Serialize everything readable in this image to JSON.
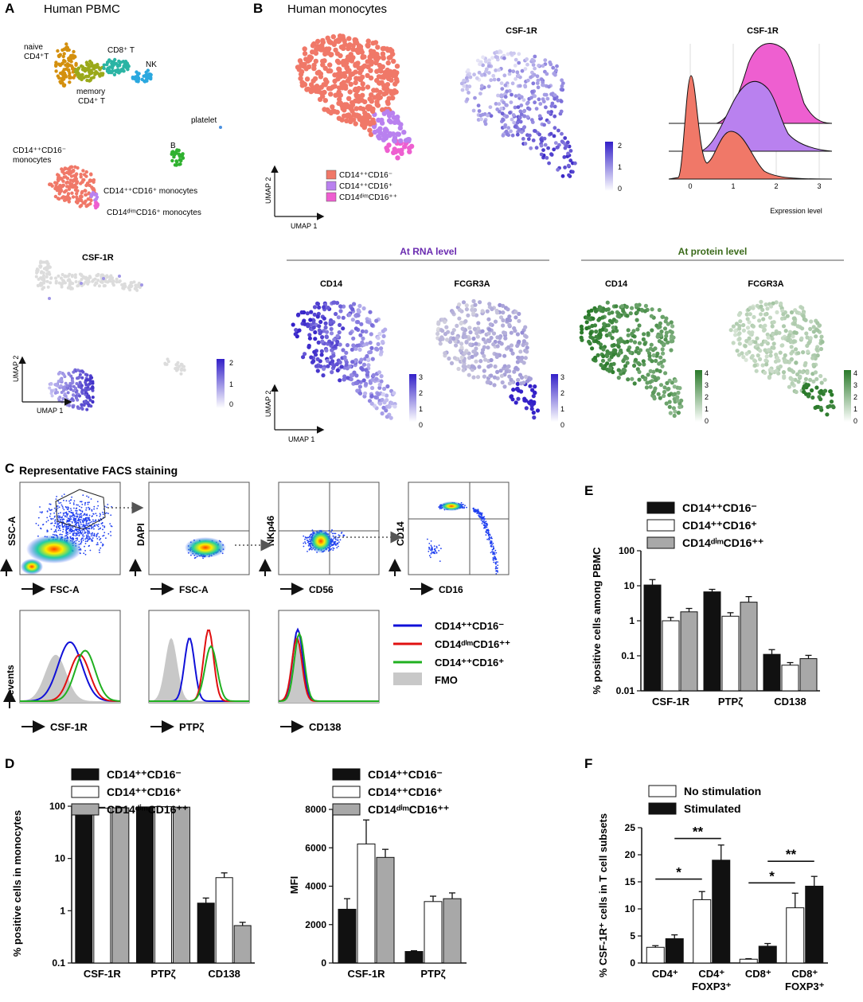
{
  "panels": {
    "A": {
      "letter": "A",
      "title": "Human PBMC",
      "csf_title": "CSF-1R",
      "cluster_labels": [
        "naive",
        "CD4⁺T",
        "CD8⁺ T",
        "NK",
        "memory",
        "CD4⁺ T",
        "platelet",
        "B",
        "CD14⁺⁺CD16⁻",
        "monocytes",
        "CD14⁺⁺CD16⁺ monocytes",
        "CD14ᵈⁱᵐCD16⁺ monocytes"
      ],
      "axis": {
        "x": "UMAP 1",
        "y": "UMAP 2"
      },
      "colorbar": [
        "2",
        "1",
        "0"
      ]
    },
    "B": {
      "letter": "B",
      "title": "Human monocytes",
      "csf_title": "CSF-1R",
      "ridge_title": "CSF-1R",
      "legend": [
        "CD14⁺⁺CD16⁻",
        "CD14⁺⁺CD16⁺",
        "CD14ᵈⁱᵐCD16⁺⁺"
      ],
      "axis": {
        "x": "UMAP 1",
        "y": "UMAP 2"
      },
      "colorbar": [
        "2",
        "1",
        "0"
      ],
      "ridge_ticks": [
        "0",
        "1",
        "2",
        "3"
      ],
      "ridge_xlabel": "Expression level",
      "rna_title": "At RNA level",
      "protein_title": "At protein level",
      "rna_maps": [
        "CD14",
        "FCGR3A"
      ],
      "protein_maps": [
        "CD14",
        "FCGR3A"
      ],
      "rna_colorbar": [
        "3",
        "2",
        "1",
        "0"
      ],
      "protein_colorbar": [
        "4",
        "3",
        "2",
        "1",
        "0"
      ]
    },
    "C": {
      "letter": "C",
      "title": "Representative FACS staining",
      "gates": [
        {
          "y": "SSC-A",
          "x": "FSC-A"
        },
        {
          "y": "DAPI",
          "x": "FSC-A"
        },
        {
          "y": "NKp46",
          "x": "CD56"
        },
        {
          "y": "CD14",
          "x": "CD16"
        }
      ],
      "hist_ylabel": "#events",
      "hist_x": [
        "CSF-1R",
        "PTPζ",
        "CD138"
      ],
      "legend": [
        "CD14⁺⁺CD16⁻",
        "CD14ᵈⁱᵐCD16⁺⁺",
        "CD14⁺⁺CD16⁺",
        "FMO"
      ]
    },
    "D": {
      "letter": "D"
    },
    "E": {
      "letter": "E"
    },
    "F": {
      "letter": "F"
    }
  },
  "colors": {
    "classical": "#f07868",
    "intermediate": "#b981ef",
    "nonclassical": "#ee5fd0",
    "purple": "#3d2ccc",
    "green": "#2f7a2f",
    "blue": "#1010d8",
    "red": "#e01010",
    "lime": "#20b020",
    "fmo": "#c8c8c8"
  },
  "chart_data": [
    {
      "id": "D_left",
      "type": "bar",
      "scale": "log",
      "categories": [
        "CSF-1R",
        "PTPζ",
        "CD138"
      ],
      "legend": [
        "CD14⁺⁺CD16⁻",
        "CD14⁺⁺CD16⁺",
        "CD14ᵈⁱᵐCD16⁺⁺"
      ],
      "series": [
        {
          "name": "CD14⁺⁺CD16⁻",
          "values": [
            70,
            97,
            1.4
          ],
          "errors": [
            8,
            0,
            0.35
          ]
        },
        {
          "name": "CD14⁺⁺CD16⁺",
          "values": [
            92,
            98,
            4.3
          ],
          "errors": [
            3,
            0,
            1.0
          ]
        },
        {
          "name": "CD14ᵈⁱᵐCD16⁺⁺",
          "values": [
            93,
            96,
            0.52
          ],
          "errors": [
            2,
            0,
            0.08
          ]
        }
      ],
      "ylabel": "% positive cells in monocytes",
      "ylim": [
        0.1,
        100
      ],
      "ticks": [
        "100",
        "10",
        "1",
        "0.1"
      ]
    },
    {
      "id": "D_right",
      "type": "bar",
      "scale": "linear",
      "categories": [
        "CSF-1R",
        "PTPζ"
      ],
      "legend": [
        "CD14⁺⁺CD16⁻",
        "CD14⁺⁺CD16⁺",
        "CD14ᵈⁱᵐCD16⁺⁺"
      ],
      "series": [
        {
          "name": "CD14⁺⁺CD16⁻",
          "values": [
            2800,
            600
          ],
          "errors": [
            550,
            40
          ]
        },
        {
          "name": "CD14⁺⁺CD16⁺",
          "values": [
            6200,
            3200
          ],
          "errors": [
            1250,
            280
          ]
        },
        {
          "name": "CD14ᵈⁱᵐCD16⁺⁺",
          "values": [
            5500,
            3350
          ],
          "errors": [
            420,
            300
          ]
        }
      ],
      "ylabel": "MFI",
      "ylim": [
        0,
        8000
      ],
      "ticks": [
        "8000",
        "6000",
        "4000",
        "2000",
        "0"
      ]
    },
    {
      "id": "E",
      "type": "bar",
      "scale": "log",
      "categories": [
        "CSF-1R",
        "PTPζ",
        "CD138"
      ],
      "legend": [
        "CD14⁺⁺CD16⁻",
        "CD14⁺⁺CD16⁺",
        "CD14ᵈⁱᵐCD16⁺⁺"
      ],
      "series": [
        {
          "name": "CD14⁺⁺CD16⁻",
          "values": [
            10.5,
            6.7,
            0.11
          ],
          "errors": [
            4.5,
            1.2,
            0.04
          ]
        },
        {
          "name": "CD14⁺⁺CD16⁺",
          "values": [
            1.0,
            1.35,
            0.054
          ],
          "errors": [
            0.25,
            0.35,
            0.01
          ]
        },
        {
          "name": "CD14ᵈⁱᵐCD16⁺⁺",
          "values": [
            1.8,
            3.4,
            0.083
          ],
          "errors": [
            0.45,
            1.5,
            0.02
          ]
        }
      ],
      "ylabel": "% positive cells among PBMC",
      "ylim": [
        0.01,
        100
      ],
      "ticks": [
        "100",
        "10",
        "1",
        "0.1",
        "0.01"
      ]
    },
    {
      "id": "F",
      "type": "bar",
      "scale": "linear",
      "categories": [
        "CD4⁺",
        "CD4⁺ FOXP3⁺",
        "CD8⁺",
        "CD8⁺ FOXP3⁺"
      ],
      "legend": [
        "No stimulation",
        "Stimulated"
      ],
      "series": [
        {
          "name": "No stimulation",
          "values": [
            2.9,
            11.7,
            0.7,
            10.2
          ],
          "errors": [
            0.3,
            1.5,
            0.1,
            2.7
          ]
        },
        {
          "name": "Stimulated",
          "values": [
            4.5,
            19,
            3.1,
            14.2
          ],
          "errors": [
            0.7,
            2.8,
            0.5,
            1.8
          ]
        }
      ],
      "ylabel": "% CSF-1R⁺ cells in T cell subsets",
      "ylim": [
        0,
        25
      ],
      "ticks": [
        "25",
        "20",
        "15",
        "10",
        "5",
        "0"
      ],
      "significance": [
        "*",
        "**",
        "*",
        "**"
      ]
    }
  ]
}
